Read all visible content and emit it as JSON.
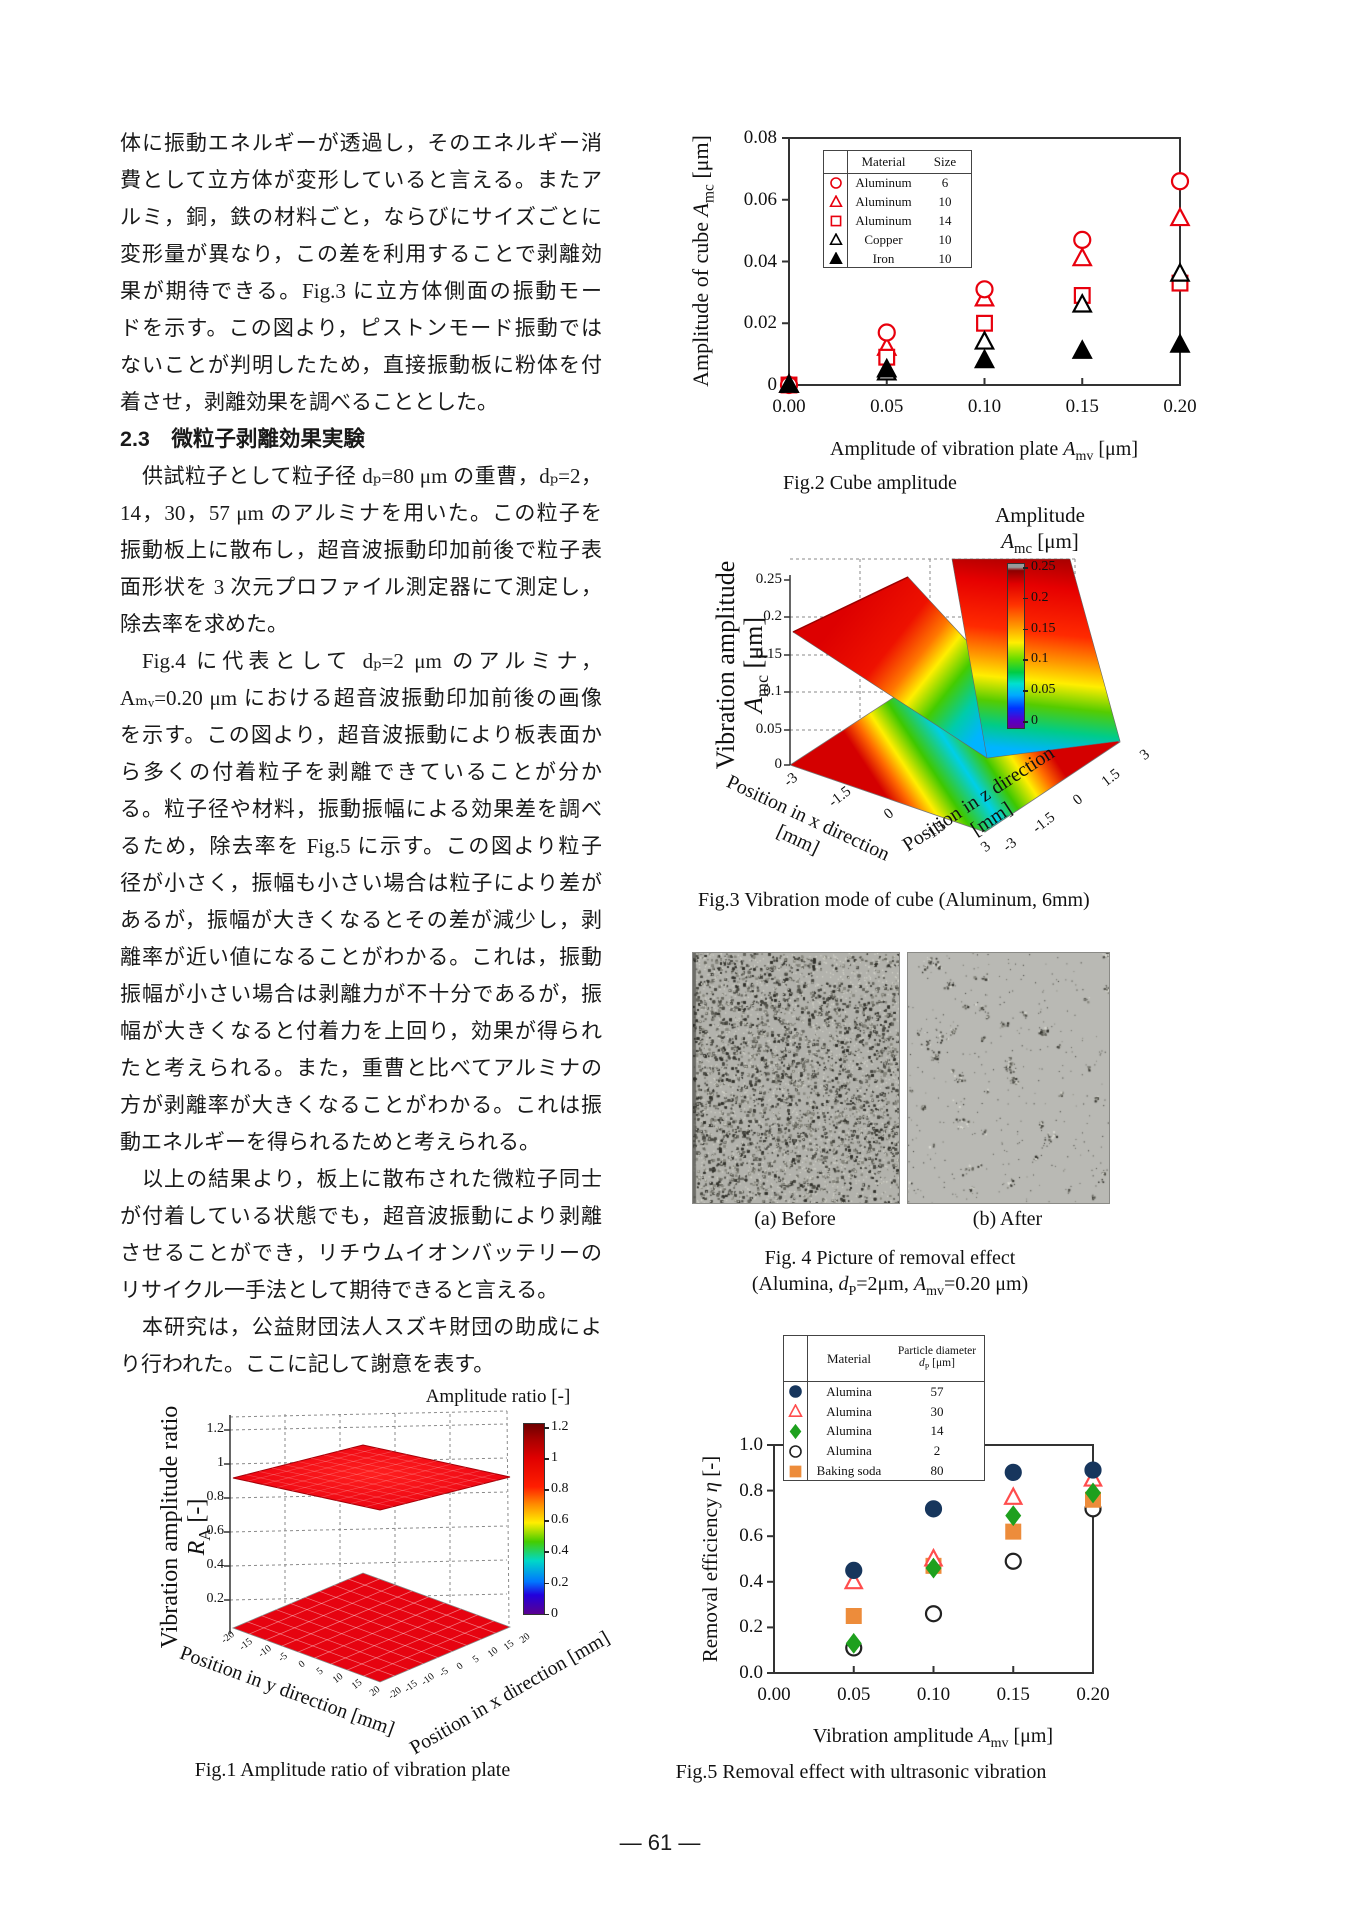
{
  "page": {
    "number": "— 61 —"
  },
  "left_column": {
    "blocks": [
      {
        "style": "body",
        "indent": false,
        "lines": [
          "体に振動エネルギーが透過し，そのエネルギー消",
          "費として立方体が変形していると言える。またア",
          "ルミ，銅，鉄の材料ごと，ならびにサイズごとに",
          "変形量が異なり，この差を利用することで剥離効",
          "果が期待できる。Fig.3 に立方体側面の振動モー",
          "ドを示す。この図より，ピストンモード振動では",
          "ないことが判明したため，直接振動板に粉体を付",
          "着させ，剥離効果を調べることとした。"
        ]
      },
      {
        "style": "heading",
        "indent": false,
        "lines": [
          "2.3　微粒子剥離効果実験"
        ]
      },
      {
        "style": "body",
        "indent": true,
        "lines": [
          "供試粒子として粒子径 dₚ=80 μm の重曹，dₚ=2，",
          "14，30，57 μm のアルミナを用いた。この粒子を",
          "振動板上に散布し，超音波振動印加前後で粒子表",
          "面形状を 3 次元プロファイル測定器にて測定し，",
          "除去率を求めた。"
        ]
      },
      {
        "style": "body",
        "indent": true,
        "lines": [
          "Fig.4 に代表として dₚ=2 μm のアルミナ，",
          "Aₘᵥ=0.20 μm における超音波振動印加前後の画像",
          "を示す。この図より，超音波振動により板表面か",
          "ら多くの付着粒子を剥離できていることが分か",
          "る。粒子径や材料，振動振幅による効果差を調べ",
          "るため，除去率を Fig.5 に示す。この図より粒子",
          "径が小さく，振幅も小さい場合は粒子により差が",
          "あるが，振幅が大きくなるとその差が減少し，剥",
          "離率が近い値になることがわかる。これは，振動",
          "振幅が小さい場合は剥離力が不十分であるが，振",
          "幅が大きくなると付着力を上回り，効果が得られ",
          "たと考えられる。また，重曹と比べてアルミナの",
          "方が剥離率が大きくなることがわかる。これは振",
          "動エネルギーを得られるためと考えられる。"
        ]
      },
      {
        "style": "body",
        "indent": true,
        "lines": [
          "以上の結果より，板上に散布された微粒子同士",
          "が付着している状態でも，超音波振動により剥離",
          "させることができ，リチウムイオンバッテリーの",
          "リサイクル一手法として期待できると言える。"
        ]
      },
      {
        "style": "body",
        "indent": true,
        "lines": [
          "本研究は，公益財団法人スズキ財団の助成によ",
          "り行われた。ここに記して謝意を表す。"
        ]
      }
    ]
  },
  "figures": {
    "fig4": {
      "label_before": "(a) Before",
      "label_after": "(b) After",
      "caption_line1": "Fig. 4 Picture of removal effect",
      "caption_line2_seg": [
        {
          "t": "(Alumina, "
        },
        {
          "i": "d"
        },
        {
          "s": "P"
        },
        {
          "t": "=2μm, "
        },
        {
          "i": "A"
        },
        {
          "s": "mv"
        },
        {
          "t": "=0.20 μm)"
        }
      ]
    }
  },
  "chart_data": [
    {
      "id": "fig2",
      "type": "scatter",
      "caption": "Fig.2 Cube amplitude",
      "xlabel_seg": [
        {
          "t": "Amplitude of vibration plate "
        },
        {
          "i": "A"
        },
        {
          "s": "mv"
        },
        {
          "t": " [μm]"
        }
      ],
      "ylabel_seg": [
        {
          "t": "Amplitude of cube "
        },
        {
          "i": "A"
        },
        {
          "s": "mc"
        },
        {
          "t": " [μm]"
        }
      ],
      "xlim": [
        0,
        0.2
      ],
      "ylim": [
        0,
        0.08
      ],
      "xticks": [
        "0.00",
        "0.05",
        "0.10",
        "0.15",
        "0.20"
      ],
      "yticks": [
        "0",
        "0.02",
        "0.04",
        "0.06",
        "0.08"
      ],
      "legend": {
        "col_headers": [
          "Material",
          "Size"
        ]
      },
      "series": [
        {
          "material": "Aluminum",
          "size": "6",
          "marker": {
            "shape": "circle",
            "color": "#e8000d",
            "filled": false
          },
          "x": [
            0,
            0.05,
            0.1,
            0.15,
            0.2
          ],
          "y": [
            0,
            0.017,
            0.031,
            0.047,
            0.066
          ]
        },
        {
          "material": "Aluminum",
          "size": "10",
          "marker": {
            "shape": "triangle",
            "color": "#e8000d",
            "filled": false
          },
          "x": [
            0,
            0.05,
            0.1,
            0.15,
            0.2
          ],
          "y": [
            0,
            0.012,
            0.028,
            0.041,
            0.054
          ]
        },
        {
          "material": "Aluminum",
          "size": "14",
          "marker": {
            "shape": "square",
            "color": "#e8000d",
            "filled": false
          },
          "x": [
            0,
            0.05,
            0.1,
            0.15,
            0.2
          ],
          "y": [
            0,
            0.009,
            0.02,
            0.029,
            0.033
          ]
        },
        {
          "material": "Copper",
          "size": "10",
          "marker": {
            "shape": "triangle",
            "color": "#000000",
            "filled": false
          },
          "x": [
            0,
            0.05,
            0.1,
            0.15,
            0.2
          ],
          "y": [
            0,
            0.004,
            0.014,
            0.026,
            0.036
          ]
        },
        {
          "material": "Iron",
          "size": "10",
          "marker": {
            "shape": "triangle",
            "color": "#000000",
            "filled": true
          },
          "x": [
            0,
            0.05,
            0.1,
            0.15,
            0.2
          ],
          "y": [
            0,
            0.005,
            0.008,
            0.011,
            0.013
          ]
        }
      ]
    },
    {
      "id": "fig3",
      "type": "surface",
      "caption": "Fig.3 Vibration mode of cube (Aluminum, 6mm)",
      "zlabel_line1": "Vibration amplitude",
      "zlabel_line2_seg": [
        {
          "i": "A"
        },
        {
          "s": "mc"
        },
        {
          "t": " [μm]"
        }
      ],
      "xlabel_line1": "Position in x direction",
      "xlabel_line2": "[mm]",
      "ylabel_line1": "Position in z direction",
      "ylabel_line2": "[mm]",
      "zticks": [
        "0.25",
        "0.2",
        "0.15",
        "0.1",
        "0.05",
        "0"
      ],
      "x_edge_ticks": [
        "-3",
        "-1.5",
        "0",
        "1.5",
        "3"
      ],
      "z_edge_ticks": [
        "-3",
        "-1.5",
        "0",
        "1.5",
        "3"
      ],
      "zlim": [
        0,
        0.25
      ],
      "colorbar": {
        "title_line1": "Amplitude",
        "title_line2_seg": [
          {
            "i": "A"
          },
          {
            "s": "mc"
          },
          {
            "t": " [μm]"
          }
        ],
        "ticks": [
          "0.25",
          "0.2",
          "0.15",
          "0.1",
          "0.05",
          "0"
        ]
      },
      "description": "V-shaped valley surface: amplitude near 0 along the diagonal valley, rising to ~0.18-0.25 μm at the cube edges; rainbow floor projection",
      "profile": {
        "x_mm": [
          -3,
          0,
          3
        ],
        "amplitude_um": [
          0.18,
          0,
          0.25
        ]
      }
    },
    {
      "id": "fig5",
      "type": "scatter",
      "caption": "Fig.5 Removal effect with ultrasonic vibration",
      "xlabel_seg": [
        {
          "t": "Vibration amplitude "
        },
        {
          "i": "A"
        },
        {
          "s": "mv"
        },
        {
          "t": " [μm]"
        }
      ],
      "ylabel_seg": [
        {
          "t": "Removal efficiency "
        },
        {
          "i": "η"
        },
        {
          "t": " [-]"
        }
      ],
      "xlim": [
        0,
        0.2
      ],
      "ylim": [
        0,
        1.0
      ],
      "xticks": [
        "0.00",
        "0.05",
        "0.10",
        "0.15",
        "0.20"
      ],
      "yticks": [
        "0.0",
        "0.2",
        "0.4",
        "0.6",
        "0.8",
        "1.0"
      ],
      "legend": {
        "col1_header": "Material",
        "col2_header_line1": "Particle diameter",
        "col2_header_line2_seg": [
          {
            "i": "d"
          },
          {
            "s": "P"
          },
          {
            "t": " [μm]"
          }
        ]
      },
      "series": [
        {
          "material": "Alumina",
          "size": "57",
          "marker": {
            "shape": "circle",
            "color": "#17365d",
            "filled": true
          },
          "x": [
            0.05,
            0.1,
            0.15,
            0.2
          ],
          "y": [
            0.45,
            0.72,
            0.88,
            0.89
          ]
        },
        {
          "material": "Alumina",
          "size": "30",
          "marker": {
            "shape": "triangle",
            "color": "#ff4d4d",
            "filled": false
          },
          "x": [
            0.05,
            0.1,
            0.15,
            0.2
          ],
          "y": [
            0.4,
            0.5,
            0.77,
            0.85
          ]
        },
        {
          "material": "Alumina",
          "size": "14",
          "marker": {
            "shape": "diamond",
            "color": "#1ea01e",
            "filled": true
          },
          "x": [
            0.05,
            0.1,
            0.15,
            0.2
          ],
          "y": [
            0.13,
            0.46,
            0.69,
            0.79
          ]
        },
        {
          "material": "Alumina",
          "size": "2",
          "marker": {
            "shape": "circle",
            "color": "#222222",
            "filled": false
          },
          "x": [
            0.05,
            0.1,
            0.15,
            0.2
          ],
          "y": [
            0.11,
            0.26,
            0.49,
            0.72
          ]
        },
        {
          "material": "Baking soda",
          "size": "80",
          "marker": {
            "shape": "square",
            "color": "#ed8c3b",
            "filled": true
          },
          "x": [
            0.05,
            0.1,
            0.15,
            0.2
          ],
          "y": [
            0.25,
            0.47,
            0.62,
            0.76
          ]
        }
      ]
    },
    {
      "id": "fig1",
      "type": "surface",
      "title": "Amplitude ratio [-]",
      "caption": "Fig.1 Amplitude ratio of vibration plate",
      "zlabel_line1": "Vibration amplitude ratio",
      "zlabel_line2_seg": [
        {
          "i": "R"
        },
        {
          "s": "A"
        },
        {
          "t": " [-]"
        }
      ],
      "ylabel_left": "Position in y direction [mm]",
      "xlabel_right": "Position in x direction [mm]",
      "zticks": [
        "1.2",
        "1",
        "0.8",
        "0.6",
        "0.4",
        "0.2"
      ],
      "y_edge_ticks": [
        "-20",
        "-15",
        "-10",
        "-5",
        "0",
        "5",
        "10",
        "15",
        "20"
      ],
      "x_edge_ticks": [
        "-20",
        "-15",
        "-10",
        "-5",
        "0",
        "5",
        "10",
        "15",
        "20"
      ],
      "zlim": [
        0,
        1.2
      ],
      "colorbar": {
        "ticks": [
          "1.2",
          "1",
          "0.8",
          "0.6",
          "0.4",
          "0.2",
          "0"
        ]
      },
      "description": "Nearly flat red surface: amplitude ratio approximately 1.0 over the whole vibration plate; solid red floor projection",
      "surface_level": 1.0
    }
  ]
}
